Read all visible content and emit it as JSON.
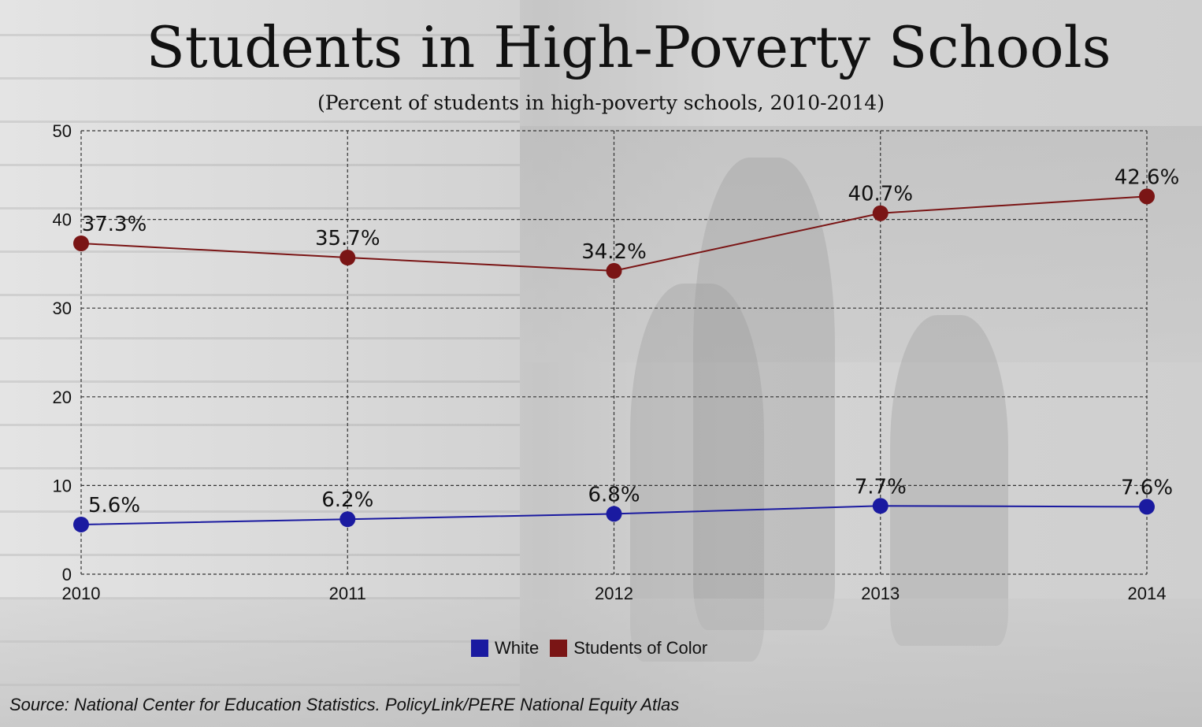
{
  "title": "Students in High-Poverty Schools",
  "subtitle": "(Percent of students in high-poverty schools, 2010-2014)",
  "source": "Source: National Center for Education Statistics. PolicyLink/PERE National Equity Atlas",
  "chart_data": {
    "type": "line",
    "title": "Students in High-Poverty Schools",
    "subtitle": "(Percent of students in high-poverty schools, 2010-2014)",
    "xlabel": "",
    "ylabel": "",
    "x": [
      "2010",
      "2011",
      "2012",
      "2013",
      "2014"
    ],
    "ylim": [
      0,
      50
    ],
    "yticks": [
      "0",
      "10",
      "20",
      "30",
      "40",
      "50"
    ],
    "grid": true,
    "legend_position": "bottom",
    "series": [
      {
        "name": "White",
        "color": "#1a1aa0",
        "values": [
          5.6,
          6.2,
          6.8,
          7.7,
          7.6
        ],
        "labels": [
          "5.6%",
          "6.2%",
          "6.8%",
          "7.7%",
          "7.6%"
        ]
      },
      {
        "name": "Students of Color",
        "color": "#7a1515",
        "values": [
          37.3,
          35.7,
          34.2,
          40.7,
          42.6
        ],
        "labels": [
          "37.3%",
          "35.7%",
          "34.2%",
          "40.7%",
          "42.6%"
        ]
      }
    ]
  }
}
